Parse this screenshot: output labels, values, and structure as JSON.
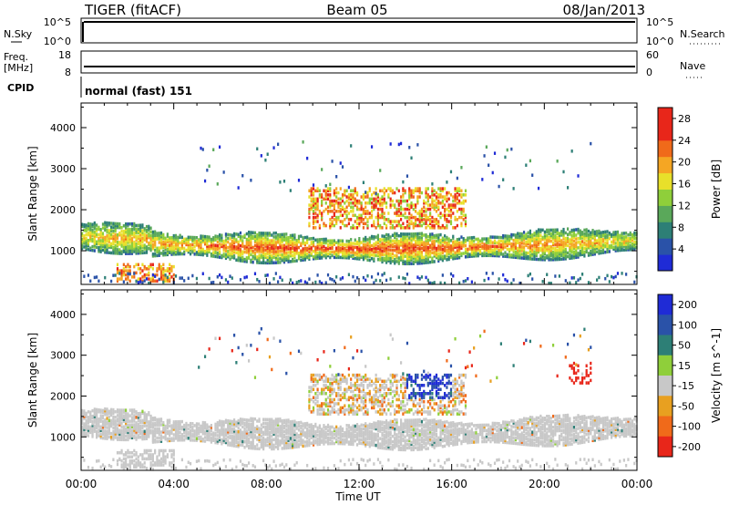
{
  "header": {
    "station": "TIGER (fitACF)",
    "beam": "Beam 05",
    "date": "08/Jan/2013"
  },
  "strips": {
    "nsky": {
      "label": "N.Sky",
      "ticks": [
        "10^5",
        "10^0"
      ],
      "right_ticks": [
        "10^5",
        "10^0"
      ],
      "right_label": "N.Search"
    },
    "freq": {
      "label_line1": "Freq.",
      "label_line2": "[MHz]",
      "ticks": [
        "18",
        "8"
      ],
      "right_ticks": [
        "60",
        "0"
      ],
      "right_label": "Nave"
    },
    "cpid": {
      "label": "CPID",
      "value": "normal (fast) 151"
    }
  },
  "chart_data": [
    {
      "type": "heatmap",
      "title": "",
      "xlabel": "Time UT",
      "ylabel": "Slant Range [km]",
      "xlim_hours": [
        0,
        24
      ],
      "ylim_km": [
        180,
        4600
      ],
      "x_ticks": [
        "00:00",
        "04:00",
        "08:00",
        "12:00",
        "16:00",
        "20:00",
        "00:00"
      ],
      "y_ticks": [
        1000,
        2000,
        3000,
        4000
      ],
      "colorbar": {
        "label": "Power [dB]",
        "ticks": [
          4,
          8,
          12,
          16,
          20,
          24,
          28
        ],
        "range": [
          0,
          30
        ],
        "colors": [
          "#1f2bd6",
          "#2a52a8",
          "#2d7f76",
          "#5aa85a",
          "#8fcf3a",
          "#e8e02a",
          "#f5a623",
          "#f06a1a",
          "#e8261a",
          "#e8261a"
        ]
      },
      "features": [
        {
          "t0": 0.0,
          "t1": 24.0,
          "r_low_km": 820,
          "r_high_km": 1500,
          "range_trend": "dips to ~1100 km near 12:00",
          "power_dB": "8-26"
        },
        {
          "t0": 10.0,
          "t1": 16.5,
          "r_low_km": 1600,
          "r_high_km": 2500,
          "power_dB": "16-30"
        },
        {
          "t0": 1.5,
          "t1": 4.0,
          "r_low_km": 250,
          "r_high_km": 700,
          "power_dB": "20-28"
        }
      ]
    },
    {
      "type": "heatmap",
      "title": "",
      "xlabel": "Time UT",
      "ylabel": "Slant Range [km]",
      "xlim_hours": [
        0,
        24
      ],
      "ylim_km": [
        180,
        4600
      ],
      "x_ticks": [
        "00:00",
        "04:00",
        "08:00",
        "12:00",
        "16:00",
        "20:00",
        "00:00"
      ],
      "y_ticks": [
        1000,
        2000,
        3000,
        4000
      ],
      "colorbar": {
        "label": "Velocity [m s^-1]",
        "ticks": [
          200,
          100,
          50,
          15,
          -15,
          -50,
          -100,
          -200
        ],
        "range": [
          -250,
          250
        ],
        "colors": [
          "#1f2bd6",
          "#2a52a8",
          "#2d7f76",
          "#8fcf3a",
          "#c8c8c8",
          "#e8a020",
          "#f06a1a",
          "#e8261a"
        ]
      },
      "features": [
        {
          "t0": 0.0,
          "t1": 24.0,
          "r_low_km": 700,
          "r_high_km": 1500,
          "velocity": "mostly ground scatter (-15..15)"
        },
        {
          "t0": 14.0,
          "t1": 16.0,
          "r_low_km": 2000,
          "r_high_km": 3000,
          "velocity": "positive 50-200"
        },
        {
          "t0": 21.0,
          "t1": 22.0,
          "r_low_km": 2300,
          "r_high_km": 2800,
          "velocity": "negative -200"
        }
      ]
    }
  ]
}
